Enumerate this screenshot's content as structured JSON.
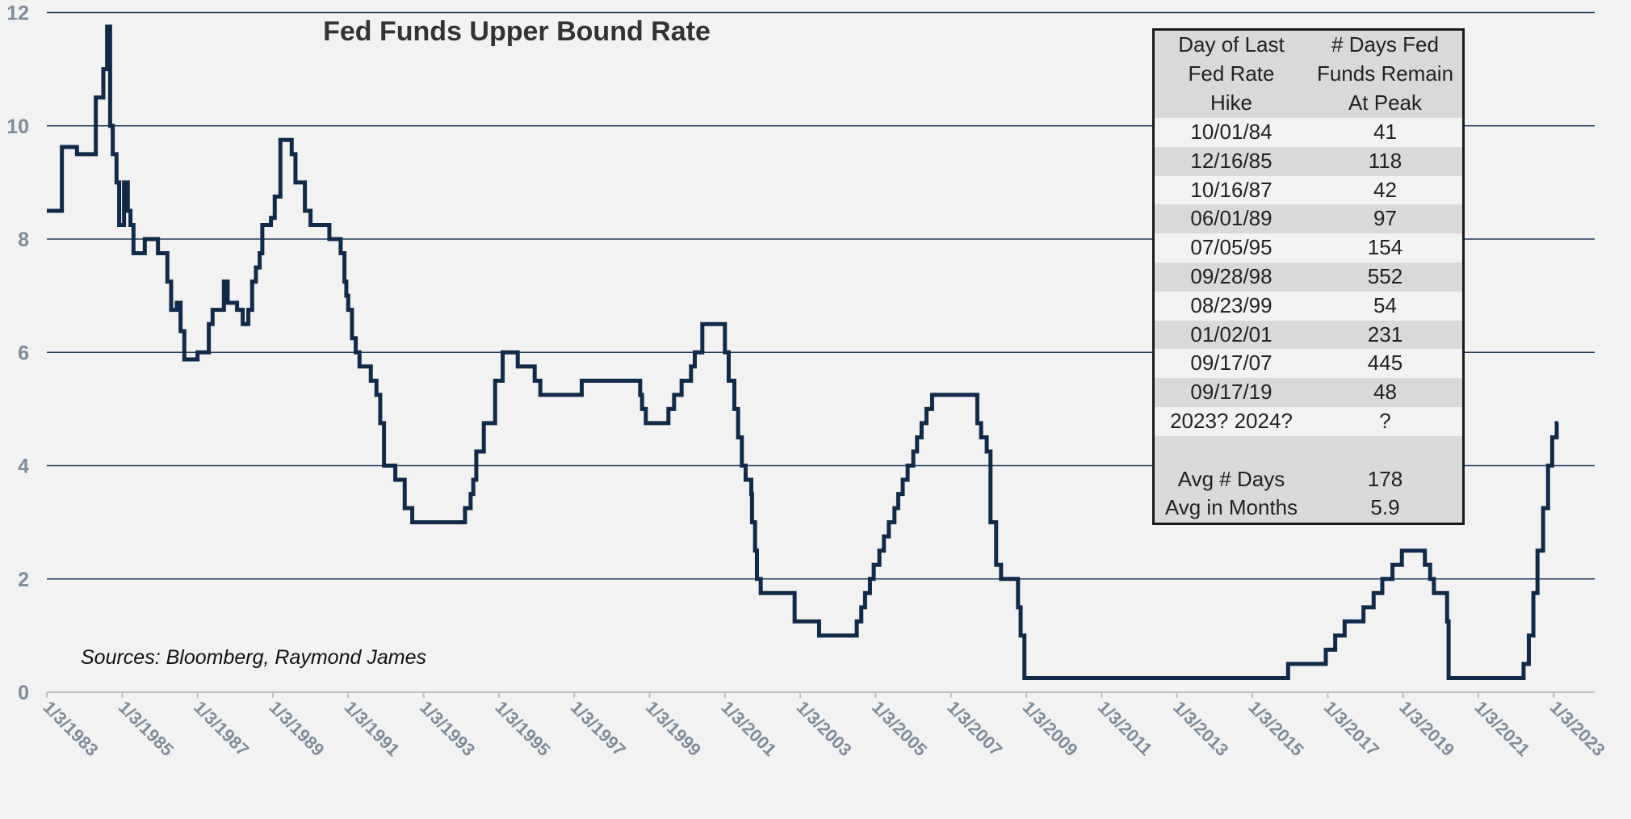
{
  "chart_data": {
    "type": "line",
    "title": "Fed Funds Upper Bound Rate",
    "source_note": "Sources: Bloomberg, Raymond James",
    "xlabel": "",
    "ylabel": "",
    "xlim": [
      1983.0,
      2023.1
    ],
    "ylim": [
      0,
      12
    ],
    "yticks": [
      0,
      2,
      4,
      6,
      8,
      10,
      12
    ],
    "xticks": [
      "1/3/1983",
      "1/3/1985",
      "1/3/1987",
      "1/3/1989",
      "1/3/1991",
      "1/3/1993",
      "1/3/1995",
      "1/3/1997",
      "1/3/1999",
      "1/3/2001",
      "1/3/2003",
      "1/3/2005",
      "1/3/2007",
      "1/3/2009",
      "1/3/2011",
      "1/3/2013",
      "1/3/2015",
      "1/3/2017",
      "1/3/2019",
      "1/3/2021",
      "1/3/2023"
    ],
    "grid": true,
    "line_color": "#0f2a4a",
    "series": [
      {
        "name": "Fed Funds Upper Bound Rate",
        "step": true,
        "points": [
          [
            1983.0,
            8.5
          ],
          [
            1983.4,
            9.625
          ],
          [
            1983.8,
            9.5
          ],
          [
            1984.3,
            10.5
          ],
          [
            1984.5,
            11.0
          ],
          [
            1984.6,
            11.75
          ],
          [
            1984.68,
            10.0
          ],
          [
            1984.75,
            9.5
          ],
          [
            1984.85,
            9.0
          ],
          [
            1984.92,
            8.25
          ],
          [
            1985.05,
            9.0
          ],
          [
            1985.15,
            8.5
          ],
          [
            1985.22,
            8.25
          ],
          [
            1985.3,
            7.75
          ],
          [
            1985.6,
            8.0
          ],
          [
            1985.95,
            7.75
          ],
          [
            1986.2,
            7.25
          ],
          [
            1986.3,
            6.75
          ],
          [
            1986.45,
            6.875
          ],
          [
            1986.55,
            6.375
          ],
          [
            1986.65,
            5.875
          ],
          [
            1987.0,
            6.0
          ],
          [
            1987.3,
            6.5
          ],
          [
            1987.4,
            6.75
          ],
          [
            1987.7,
            7.25
          ],
          [
            1987.8,
            6.875
          ],
          [
            1988.05,
            6.75
          ],
          [
            1988.2,
            6.5
          ],
          [
            1988.35,
            6.75
          ],
          [
            1988.45,
            7.25
          ],
          [
            1988.55,
            7.5
          ],
          [
            1988.65,
            7.75
          ],
          [
            1988.72,
            8.25
          ],
          [
            1988.95,
            8.375
          ],
          [
            1989.05,
            8.75
          ],
          [
            1989.2,
            9.75
          ],
          [
            1989.5,
            9.5
          ],
          [
            1989.6,
            9.0
          ],
          [
            1989.85,
            8.5
          ],
          [
            1990.0,
            8.25
          ],
          [
            1990.5,
            8.0
          ],
          [
            1990.8,
            7.75
          ],
          [
            1990.9,
            7.25
          ],
          [
            1990.95,
            7.0
          ],
          [
            1991.0,
            6.75
          ],
          [
            1991.1,
            6.25
          ],
          [
            1991.2,
            6.0
          ],
          [
            1991.3,
            5.75
          ],
          [
            1991.6,
            5.5
          ],
          [
            1991.75,
            5.25
          ],
          [
            1991.85,
            4.75
          ],
          [
            1991.95,
            4.0
          ],
          [
            1992.25,
            3.75
          ],
          [
            1992.5,
            3.25
          ],
          [
            1992.7,
            3.0
          ],
          [
            1994.1,
            3.25
          ],
          [
            1994.25,
            3.5
          ],
          [
            1994.32,
            3.75
          ],
          [
            1994.4,
            4.25
          ],
          [
            1994.6,
            4.75
          ],
          [
            1994.9,
            5.5
          ],
          [
            1995.1,
            6.0
          ],
          [
            1995.5,
            5.75
          ],
          [
            1995.95,
            5.5
          ],
          [
            1996.1,
            5.25
          ],
          [
            1997.2,
            5.5
          ],
          [
            1998.75,
            5.25
          ],
          [
            1998.8,
            5.0
          ],
          [
            1998.9,
            4.75
          ],
          [
            1999.5,
            5.0
          ],
          [
            1999.65,
            5.25
          ],
          [
            1999.85,
            5.5
          ],
          [
            2000.1,
            5.75
          ],
          [
            2000.2,
            6.0
          ],
          [
            2000.4,
            6.5
          ],
          [
            2001.0,
            6.0
          ],
          [
            2001.1,
            5.5
          ],
          [
            2001.25,
            5.0
          ],
          [
            2001.35,
            4.5
          ],
          [
            2001.45,
            4.0
          ],
          [
            2001.55,
            3.75
          ],
          [
            2001.7,
            3.5
          ],
          [
            2001.72,
            3.0
          ],
          [
            2001.8,
            2.5
          ],
          [
            2001.85,
            2.0
          ],
          [
            2001.95,
            1.75
          ],
          [
            2002.85,
            1.25
          ],
          [
            2003.5,
            1.0
          ],
          [
            2004.5,
            1.25
          ],
          [
            2004.62,
            1.5
          ],
          [
            2004.72,
            1.75
          ],
          [
            2004.85,
            2.0
          ],
          [
            2004.95,
            2.25
          ],
          [
            2005.1,
            2.5
          ],
          [
            2005.22,
            2.75
          ],
          [
            2005.35,
            3.0
          ],
          [
            2005.5,
            3.25
          ],
          [
            2005.6,
            3.5
          ],
          [
            2005.72,
            3.75
          ],
          [
            2005.85,
            4.0
          ],
          [
            2006.0,
            4.25
          ],
          [
            2006.1,
            4.5
          ],
          [
            2006.22,
            4.75
          ],
          [
            2006.35,
            5.0
          ],
          [
            2006.5,
            5.25
          ],
          [
            2007.7,
            4.75
          ],
          [
            2007.8,
            4.5
          ],
          [
            2007.95,
            4.25
          ],
          [
            2008.05,
            3.0
          ],
          [
            2008.2,
            2.25
          ],
          [
            2008.33,
            2.0
          ],
          [
            2008.78,
            1.5
          ],
          [
            2008.85,
            1.0
          ],
          [
            2008.95,
            0.25
          ],
          [
            2015.95,
            0.5
          ],
          [
            2016.95,
            0.75
          ],
          [
            2017.2,
            1.0
          ],
          [
            2017.45,
            1.25
          ],
          [
            2017.95,
            1.5
          ],
          [
            2018.22,
            1.75
          ],
          [
            2018.45,
            2.0
          ],
          [
            2018.72,
            2.25
          ],
          [
            2018.97,
            2.5
          ],
          [
            2019.58,
            2.25
          ],
          [
            2019.72,
            2.0
          ],
          [
            2019.82,
            1.75
          ],
          [
            2020.17,
            1.25
          ],
          [
            2020.21,
            0.25
          ],
          [
            2022.2,
            0.5
          ],
          [
            2022.34,
            1.0
          ],
          [
            2022.46,
            1.75
          ],
          [
            2022.57,
            2.5
          ],
          [
            2022.72,
            3.25
          ],
          [
            2022.85,
            4.0
          ],
          [
            2022.96,
            4.5
          ],
          [
            2023.08,
            4.75
          ],
          [
            2023.12,
            4.75
          ]
        ]
      }
    ]
  },
  "table": {
    "headers": [
      "Day of Last\nFed Rate\nHike",
      "# Days Fed\nFunds Remain\nAt Peak"
    ],
    "rows": [
      [
        "10/01/84",
        "41"
      ],
      [
        "12/16/85",
        "118"
      ],
      [
        "10/16/87",
        "42"
      ],
      [
        "06/01/89",
        "97"
      ],
      [
        "07/05/95",
        "154"
      ],
      [
        "09/28/98",
        "552"
      ],
      [
        "08/23/99",
        "54"
      ],
      [
        "01/02/01",
        "231"
      ],
      [
        "09/17/07",
        "445"
      ],
      [
        "09/17/19",
        "48"
      ],
      [
        "2023? 2024?",
        "?"
      ],
      [
        "",
        ""
      ],
      [
        "Avg # Days",
        "178"
      ],
      [
        "Avg in Months",
        "5.9"
      ]
    ]
  }
}
